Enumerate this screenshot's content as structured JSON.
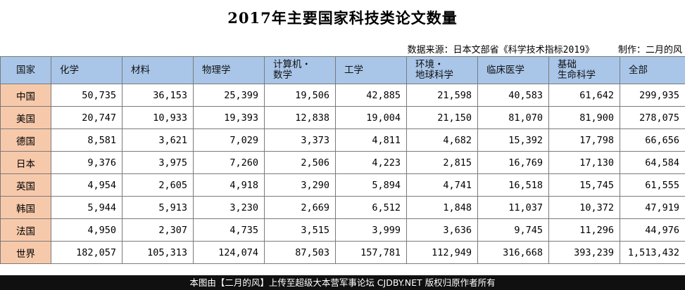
{
  "title": "2017年主要国家科技类论文数量",
  "source": "数据来源：日本文部省《科学技术指标2019》",
  "credit": "制作：二月的风",
  "footer": "本图由【二月的风】上传至超级大本营军事论坛 CJDBY.NET 版权归原作者所有",
  "chart_data": {
    "type": "table",
    "title": "2017年主要国家科技类论文数量",
    "columns": [
      "国家",
      "化学",
      "材料",
      "物理学",
      "计算机・数学",
      "工学",
      "环境・地球科学",
      "临床医学",
      "基础生命科学",
      "全部"
    ],
    "header_lines": [
      [
        "国家"
      ],
      [
        "化学"
      ],
      [
        "材料"
      ],
      [
        "物理学"
      ],
      [
        "计算机・",
        "数学"
      ],
      [
        "工学"
      ],
      [
        "环境・",
        "地球科学"
      ],
      [
        "临床医学"
      ],
      [
        "基础",
        "生命科学"
      ],
      [
        "全部"
      ]
    ],
    "rows": [
      [
        "中国",
        "50,735",
        "36,153",
        "25,399",
        "19,506",
        "42,885",
        "21,598",
        "40,583",
        "61,642",
        "299,935"
      ],
      [
        "美国",
        "20,747",
        "10,933",
        "19,393",
        "12,838",
        "19,004",
        "21,150",
        "81,070",
        "81,900",
        "278,075"
      ],
      [
        "德国",
        "8,581",
        "3,621",
        "7,029",
        "3,373",
        "4,811",
        "4,682",
        "15,392",
        "17,798",
        "66,656"
      ],
      [
        "日本",
        "9,376",
        "3,975",
        "7,260",
        "2,506",
        "4,223",
        "2,815",
        "16,769",
        "17,130",
        "64,584"
      ],
      [
        "英国",
        "4,954",
        "2,605",
        "4,918",
        "3,290",
        "5,894",
        "4,741",
        "16,518",
        "15,745",
        "61,555"
      ],
      [
        "韩国",
        "5,944",
        "5,913",
        "3,230",
        "2,669",
        "6,512",
        "1,848",
        "11,037",
        "10,372",
        "47,919"
      ],
      [
        "法国",
        "4,950",
        "2,307",
        "4,735",
        "3,515",
        "3,999",
        "3,636",
        "9,745",
        "11,296",
        "44,976"
      ],
      [
        "世界",
        "182,057",
        "105,313",
        "124,074",
        "87,503",
        "157,781",
        "112,949",
        "316,668",
        "393,239",
        "1,513,432"
      ]
    ]
  },
  "colors": {
    "header_bg": "#a9c6e9",
    "country_bg": "#f7c9ab",
    "footer_bg": "#101010",
    "border": "#7a7a7a"
  }
}
